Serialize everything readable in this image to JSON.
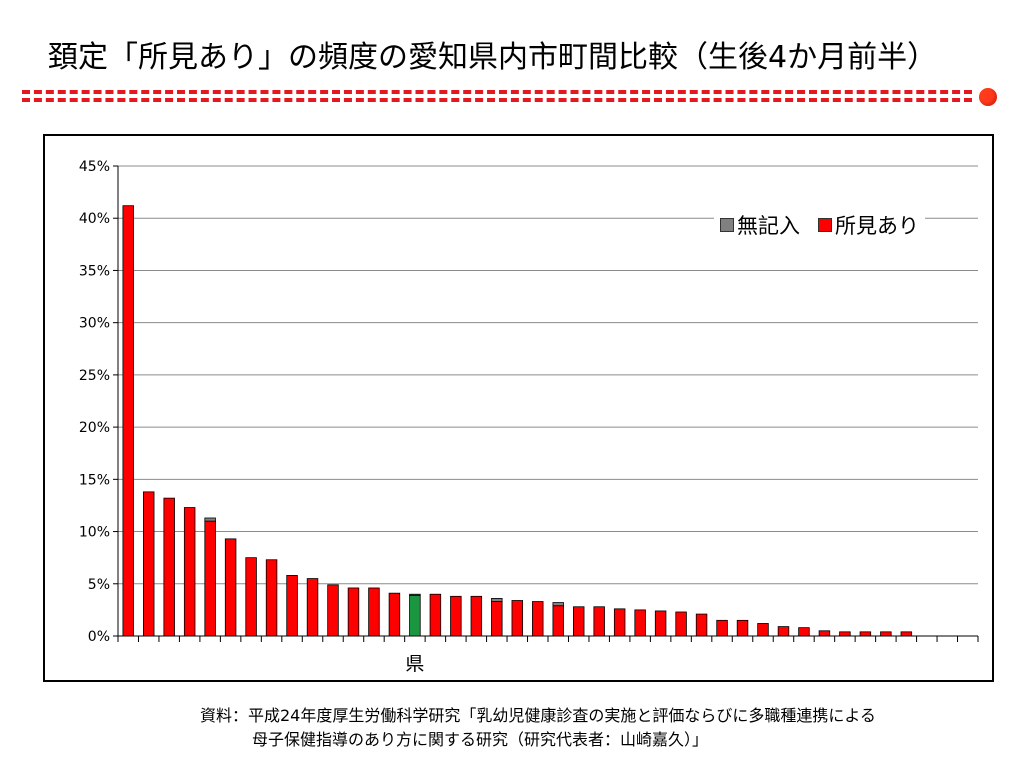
{
  "title": "頚定「所見あり」の頻度の愛知県内市町間比較（生後4か月前半）",
  "source": {
    "line1": "資料：平成24年度厚生労働科学研究「乳幼児健康診査の実施と評価ならびに多職種連携による",
    "line2": "母子保健指導のあり方に関する研究（研究代表者：山崎嘉久）」"
  },
  "colors": {
    "finding": "#ff0000",
    "unrecorded": "#808080",
    "prefecture": "#1a9641",
    "accent": "#e3191f"
  },
  "chart_data": {
    "type": "bar",
    "stacked": true,
    "ylim": [
      0,
      45
    ],
    "y_ticks": [
      "0%",
      "5%",
      "10%",
      "15%",
      "20%",
      "25%",
      "30%",
      "35%",
      "40%",
      "45%"
    ],
    "grid": true,
    "legend_position": "top-right",
    "legend": [
      "無記入",
      "所見あり"
    ],
    "highlight_label": "県",
    "highlight_index": 14,
    "category_count": 42,
    "series": [
      {
        "name": "所見あり",
        "values": [
          41.2,
          13.8,
          13.2,
          12.3,
          11.0,
          9.3,
          7.5,
          7.3,
          5.8,
          5.5,
          4.9,
          4.6,
          4.6,
          4.1,
          3.9,
          4.0,
          3.8,
          3.8,
          3.3,
          3.4,
          3.3,
          2.9,
          2.8,
          2.8,
          2.6,
          2.5,
          2.4,
          2.3,
          2.1,
          1.5,
          1.5,
          1.2,
          0.9,
          0.8,
          0.5,
          0.4,
          0.4,
          0.4,
          0.4,
          0,
          0,
          0
        ]
      },
      {
        "name": "無記入",
        "values": [
          0,
          0,
          0,
          0,
          0.3,
          0,
          0,
          0,
          0,
          0,
          0,
          0,
          0,
          0,
          0.1,
          0,
          0,
          0,
          0.3,
          0,
          0,
          0.3,
          0,
          0,
          0,
          0,
          0,
          0,
          0,
          0,
          0,
          0,
          0,
          0,
          0,
          0,
          0,
          0,
          0,
          0,
          0,
          0
        ]
      }
    ]
  }
}
